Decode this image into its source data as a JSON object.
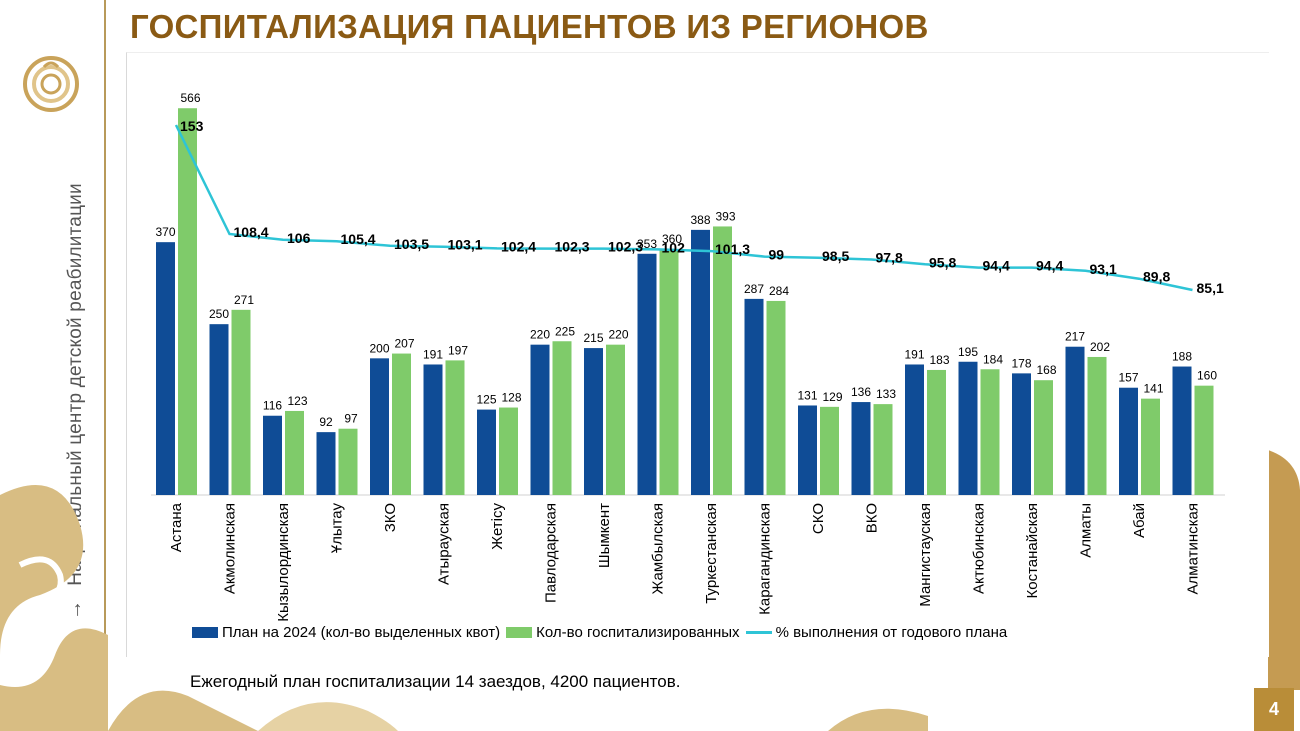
{
  "slide": {
    "title": "ГОСПИТАЛИЗАЦИЯ ПАЦИЕНТОВ ИЗ РЕГИОНОВ",
    "sidebar_text": "Национальный центр детской реабилитации",
    "sidebar_arrow": "→",
    "footnote": "Ежегодный план госпитализации 14 заездов, 4200 пациентов.",
    "page_number": "4",
    "logo_icon": "org-emblem-icon"
  },
  "colors": {
    "plan": "#0f4c96",
    "actual": "#7fcb6a",
    "percent": "#2ec4d6",
    "title": "#8a5a14",
    "gold": "#b98d38"
  },
  "chart_data": {
    "type": "bar",
    "categories": [
      "Астана",
      "Акмолинская",
      "Кызылординская",
      "Ұлытау",
      "ЗКО",
      "Атырауская",
      "Жетісу",
      "Павлодарская",
      "Шымкент",
      "Жамбылская",
      "Туркестанская",
      "Карагандинская",
      "СКО",
      "ВКО",
      "Мангистауская",
      "Актюбинская",
      "Костанайская",
      "Алматы",
      "Абай",
      "Алматинская"
    ],
    "series": [
      {
        "name": "План на 2024 (кол-во выделенных квот)",
        "kind": "bar",
        "values": [
          370,
          250,
          116,
          92,
          200,
          191,
          125,
          220,
          215,
          353,
          388,
          287,
          131,
          136,
          191,
          195,
          178,
          217,
          157,
          188
        ]
      },
      {
        "name": "Кол-во госпитализированных",
        "kind": "bar",
        "values": [
          566,
          271,
          123,
          97,
          207,
          197,
          128,
          225,
          220,
          360,
          393,
          284,
          129,
          133,
          183,
          184,
          168,
          202,
          141,
          160
        ]
      },
      {
        "name": "% выполнения от годового плана",
        "kind": "line",
        "values": [
          153,
          108.4,
          106,
          105.4,
          103.5,
          103.1,
          102.4,
          102.3,
          102.3,
          102,
          101.3,
          99,
          98.5,
          97.8,
          95.8,
          94.4,
          94.4,
          93.1,
          89.8,
          85.1
        ],
        "labels": [
          "153",
          "108,4",
          "106",
          "105,4",
          "103,5",
          "103,1",
          "102,4",
          "102,3",
          "102,3",
          "102",
          "101,3",
          "99",
          "98,5",
          "97,8",
          "95,8",
          "94,4",
          "94,4",
          "93,1",
          "89,8",
          "85,1"
        ]
      }
    ],
    "ylim": [
      0,
      600
    ],
    "y2lim": [
      0,
      300
    ],
    "grid": false,
    "legend_position": "bottom"
  }
}
